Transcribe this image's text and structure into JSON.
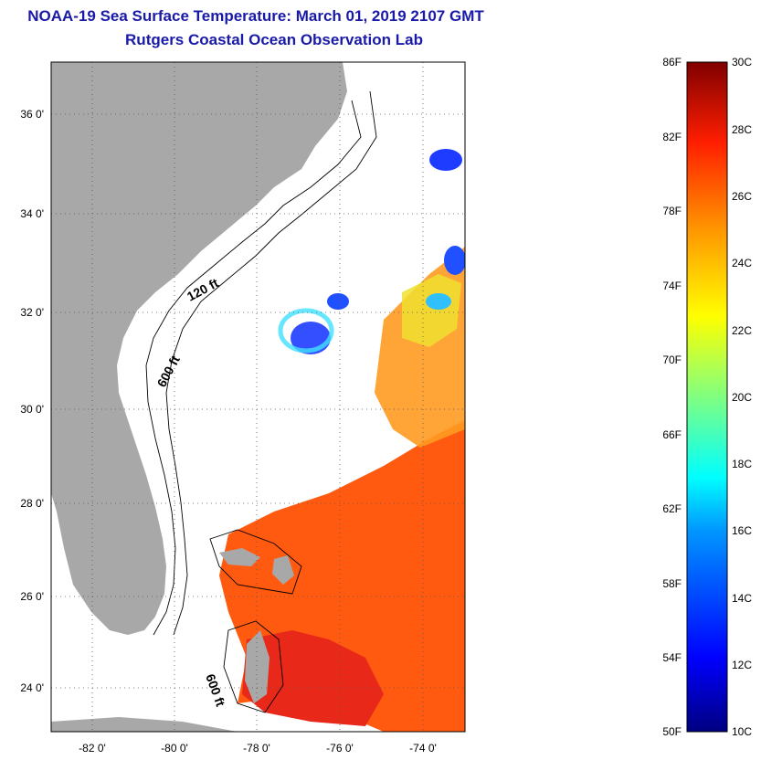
{
  "header": {
    "title": "NOAA-19 Sea Surface Temperature:  March 01, 2019 2107 GMT",
    "subtitle": "Rutgers Coastal Ocean Observation Lab"
  },
  "map": {
    "lat_labels": [
      "36 0'",
      "34 0'",
      "32 0'",
      "30 0'",
      "28 0'",
      "26 0'",
      "24 0'"
    ],
    "lon_labels": [
      "-82 0'",
      "-80 0'",
      "-78 0'",
      "-76 0'",
      "-74 0'"
    ],
    "contour_labels": [
      "120 ft",
      "600 ft",
      "600 ft"
    ],
    "colors": {
      "land": "#a8a8a8",
      "water_nodata": "#ffffff",
      "warm": "#ff5a10",
      "hot": "#e82818"
    }
  },
  "colorbar": {
    "fahrenheit_labels": [
      "86F",
      "82F",
      "78F",
      "74F",
      "70F",
      "66F",
      "62F",
      "58F",
      "54F",
      "50F"
    ],
    "celsius_labels": [
      "30C",
      "28C",
      "26C",
      "24C",
      "22C",
      "20C",
      "18C",
      "16C",
      "14C",
      "12C",
      "10C"
    ],
    "colors": [
      "#000080",
      "#0000ff",
      "#0080ff",
      "#00ffff",
      "#80ff80",
      "#ffff00",
      "#ff8000",
      "#ff0000",
      "#800000"
    ]
  }
}
